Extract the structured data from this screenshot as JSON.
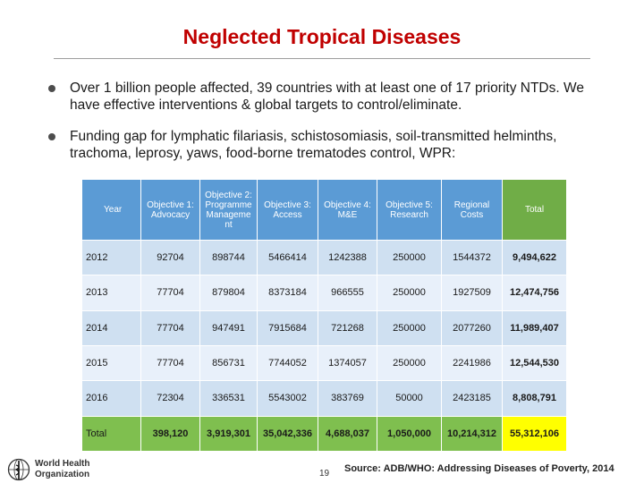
{
  "slide": {
    "title": "Neglected Tropical Diseases",
    "bullets": [
      "Over 1 billion people affected, 39 countries with at least one of 17 priority NTDs. We have effective interventions & global targets to control/eliminate.",
      "Funding gap for lymphatic filariasis, schistosomiasis, soil-transmitted helminths, trachoma, leprosy, yaws, food-borne trematodes control, WPR:"
    ],
    "page_number": "19",
    "source": "Source: ADB/WHO: Addressing Diseases of Poverty, 2014",
    "logo": {
      "line1": "World Health",
      "line2": "Organization"
    }
  },
  "table": {
    "headers": {
      "year": "Year",
      "obj1": "Objective 1: Advocacy",
      "obj2": "Objective 2: Programme Manageme nt",
      "obj3": "Objective 3: Access",
      "obj4": "Objective 4: M&E",
      "obj5": "Objective 5: Research",
      "regional": "Regional Costs",
      "total": "Total"
    },
    "rows": [
      {
        "year": "2012",
        "obj1": "92704",
        "obj2": "898744",
        "obj3": "5466414",
        "obj4": "1242388",
        "obj5": "250000",
        "regional": "1544372",
        "total": "9,494,622"
      },
      {
        "year": "2013",
        "obj1": "77704",
        "obj2": "879804",
        "obj3": "8373184",
        "obj4": "966555",
        "obj5": "250000",
        "regional": "1927509",
        "total": "12,474,756"
      },
      {
        "year": "2014",
        "obj1": "77704",
        "obj2": "947491",
        "obj3": "7915684",
        "obj4": "721268",
        "obj5": "250000",
        "regional": "2077260",
        "total": "11,989,407"
      },
      {
        "year": "2015",
        "obj1": "77704",
        "obj2": "856731",
        "obj3": "7744052",
        "obj4": "1374057",
        "obj5": "250000",
        "regional": "2241986",
        "total": "12,544,530"
      },
      {
        "year": "2016",
        "obj1": "72304",
        "obj2": "336531",
        "obj3": "5543002",
        "obj4": "383769",
        "obj5": "50000",
        "regional": "2423185",
        "total": "8,808,791"
      }
    ],
    "totals": {
      "year": "Total",
      "obj1": "398,120",
      "obj2": "3,919,301",
      "obj3": "35,042,336",
      "obj4": "4,688,037",
      "obj5": "1,050,000",
      "regional": "10,214,312",
      "total": "55,312,106"
    }
  },
  "colors": {
    "title": "#c00000",
    "header_blue": "#5b9bd5",
    "header_green": "#70ad47",
    "row_light": "#e8f0fa",
    "row_mid": "#cfe0f1",
    "totals_green": "#7fbf4f",
    "grand_total_yellow": "#ffff00"
  }
}
